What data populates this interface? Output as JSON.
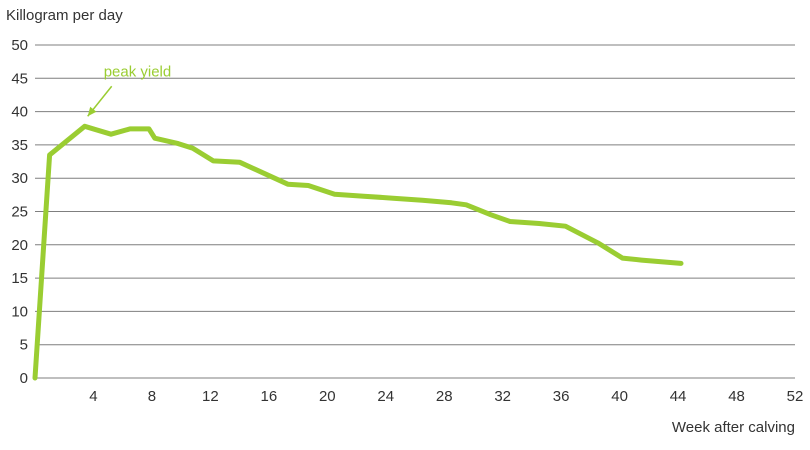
{
  "chart_data": {
    "type": "line",
    "title": "",
    "ylabel": "Killogram per day",
    "xlabel": "Week after calving",
    "xlim": [
      0,
      52
    ],
    "ylim": [
      0,
      50
    ],
    "x_ticks": [
      "4",
      "8",
      "12",
      "16",
      "20",
      "24",
      "28",
      "32",
      "36",
      "40",
      "44",
      "48",
      "52"
    ],
    "y_ticks": [
      "0",
      "5",
      "10",
      "15",
      "20",
      "25",
      "30",
      "35",
      "40",
      "45",
      "50"
    ],
    "grid": "horizontal",
    "series": [
      {
        "color": "#9acd32",
        "x": [
          0,
          1,
          3.4,
          5.2,
          6.5,
          7.8,
          8.2,
          9.8,
          10.8,
          12.2,
          14,
          15.5,
          17.3,
          18.7,
          20.5,
          22.5,
          24.5,
          26.5,
          28.5,
          29.5,
          31.2,
          32.5,
          34.5,
          36.3,
          38.5,
          40.2,
          41.5,
          44.2
        ],
        "values": [
          0,
          33.5,
          37.8,
          36.6,
          37.4,
          37.4,
          36,
          35.2,
          34.5,
          32.6,
          32.4,
          30.9,
          29.1,
          28.9,
          27.6,
          27.3,
          27,
          26.7,
          26.3,
          26,
          24.5,
          23.5,
          23.2,
          22.8,
          20.3,
          18,
          17.7,
          17.2
        ]
      }
    ],
    "annotations": [
      {
        "text": "peak yield",
        "x": 3.4,
        "y": 37.8,
        "color": "#9acd32"
      }
    ]
  }
}
